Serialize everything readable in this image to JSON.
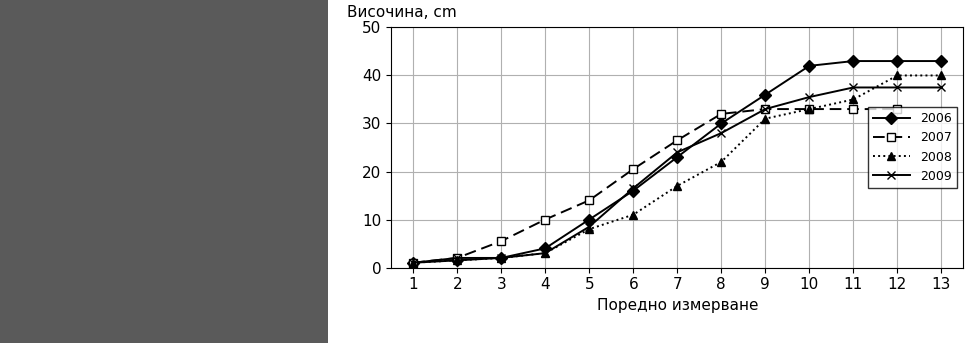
{
  "chart_data": {
    "type": "line",
    "y_label": "Височина, cm",
    "x_label": "Поредно измерване",
    "x": [
      1,
      2,
      3,
      4,
      5,
      6,
      7,
      8,
      9,
      10,
      11,
      12,
      13
    ],
    "series": [
      {
        "name": "2006",
        "color": "#000000",
        "marker": "diamond",
        "line_style": "solid",
        "values": [
          1,
          1.5,
          2,
          4,
          10,
          16,
          23,
          30,
          36,
          42,
          43,
          43,
          43
        ]
      },
      {
        "name": "2007",
        "color": "#000000",
        "marker": "open_square",
        "line_style": "dashed",
        "values": [
          1,
          2,
          5.5,
          10,
          14,
          20.5,
          26.5,
          32,
          33,
          33,
          33,
          33,
          null
        ]
      },
      {
        "name": "2008",
        "color": "#000000",
        "marker": "triangle",
        "line_style": "dotted",
        "values": [
          1,
          1.5,
          2,
          3,
          8,
          11,
          17,
          22,
          31,
          33,
          35,
          40,
          40
        ]
      },
      {
        "name": "2009",
        "color": "#000000",
        "marker": "x",
        "line_style": "solid",
        "values": [
          1,
          2,
          2,
          3,
          8.5,
          16.5,
          24,
          28,
          33,
          35.5,
          37.5,
          37.5,
          37.5
        ]
      }
    ],
    "xlim": [
      0.5,
      13.5
    ],
    "xticks": [
      1,
      2,
      3,
      4,
      5,
      6,
      7,
      8,
      9,
      10,
      11,
      12,
      13
    ],
    "ylim": [
      0,
      50
    ],
    "yticks": [
      0,
      10,
      20,
      30,
      40,
      50
    ],
    "grid": true,
    "legend": "center right"
  }
}
